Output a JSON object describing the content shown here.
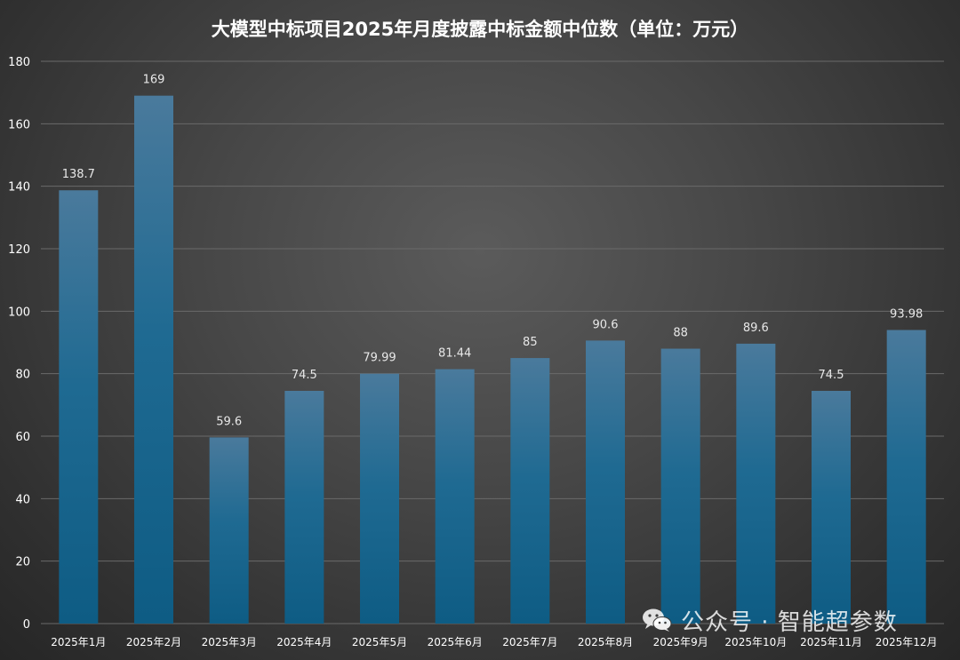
{
  "chart_data": {
    "type": "bar",
    "title": "大模型中标项目2025年月度披露中标金额中位数（单位：万元）",
    "categories": [
      "2025年1月",
      "2025年2月",
      "2025年3月",
      "2025年4月",
      "2025年5月",
      "2025年6月",
      "2025年7月",
      "2025年8月",
      "2025年9月",
      "2025年10月",
      "2025年11月",
      "2025年12月"
    ],
    "values": [
      138.7,
      169,
      59.6,
      74.5,
      79.99,
      81.44,
      85,
      90.6,
      88,
      89.6,
      74.5,
      93.98
    ],
    "value_labels": [
      "138.7",
      "169",
      "59.6",
      "74.5",
      "79.99",
      "81.44",
      "85",
      "90.6",
      "88",
      "89.6",
      "74.5",
      "93.98"
    ],
    "ylim": [
      0,
      180
    ],
    "yticks": [
      0,
      20,
      40,
      60,
      80,
      100,
      120,
      140,
      160,
      180
    ],
    "xlabel": "",
    "ylabel": "",
    "grid": true,
    "legend": "none",
    "colors": {
      "bar_top": "#4a7a9c",
      "bar_bottom": "#0e5c84",
      "gridline": "#6a6a6a",
      "text": "#ffffff",
      "label_text": "#e8e8e8"
    }
  },
  "watermark": {
    "icon": "wechat-icon",
    "text": "公众号 · 智能超参数"
  }
}
